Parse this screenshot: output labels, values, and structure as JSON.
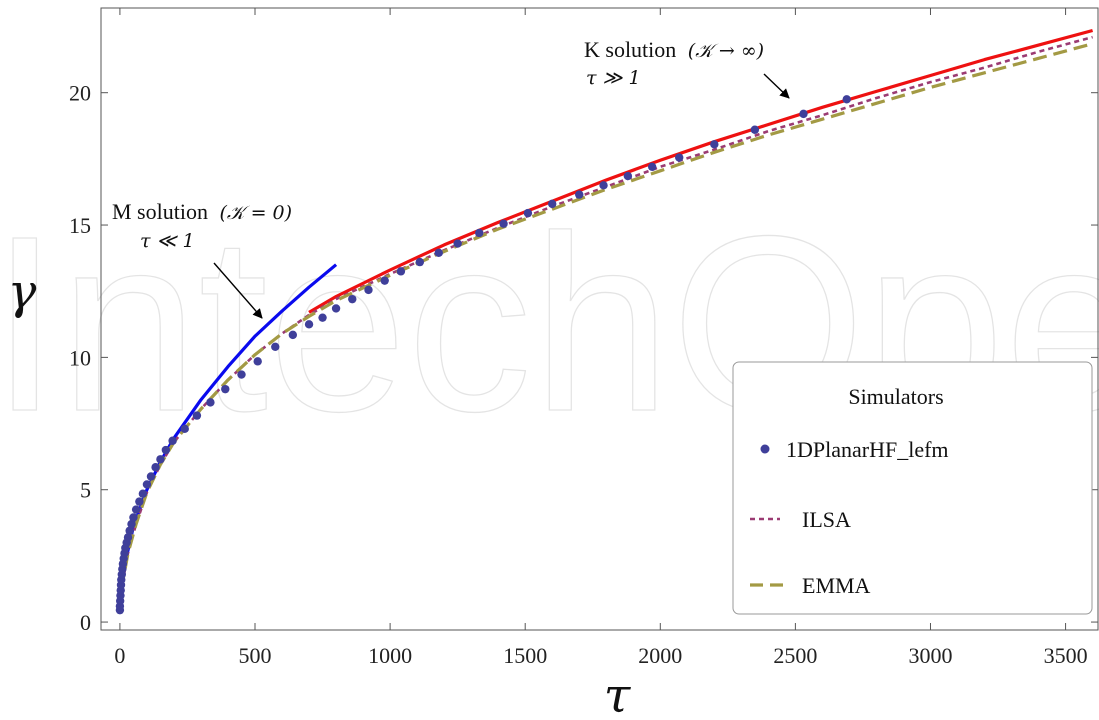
{
  "watermark": "IntechOpen",
  "chart_data": {
    "type": "line",
    "title": "",
    "xlabel": "τ",
    "ylabel": "γ",
    "xlim": [
      -70,
      3620
    ],
    "ylim": [
      -0.3,
      23.2
    ],
    "xticks": [
      0,
      500,
      1000,
      1500,
      2000,
      2500,
      3000,
      3500
    ],
    "yticks": [
      0,
      5,
      10,
      15,
      20
    ],
    "xtick_labels": [
      "0",
      "500",
      "1000",
      "1500",
      "2000",
      "2500",
      "3000",
      "3500"
    ],
    "ytick_labels": [
      "0",
      "5",
      "10",
      "15",
      "20"
    ],
    "grid": false,
    "legend": {
      "title": "Simulators",
      "placement": "bottom-right",
      "entries": [
        {
          "label": "1DPlanarHF_lefm",
          "style": "dots",
          "color": "#3f3f9a"
        },
        {
          "label": "ILSA",
          "style": "short-dash",
          "color": "#9b3b73"
        },
        {
          "label": "EMMA",
          "style": "long-dash",
          "color": "#a39a44"
        }
      ]
    },
    "series": [
      {
        "name": "",
        "id": "M-solution",
        "style": "solid",
        "color": "#0a0aee",
        "points": [
          [
            0,
            0.45
          ],
          [
            10,
            1.58
          ],
          [
            25,
            2.5
          ],
          [
            50,
            3.6
          ],
          [
            100,
            5.0
          ],
          [
            150,
            6.05
          ],
          [
            200,
            6.95
          ],
          [
            300,
            8.4
          ],
          [
            400,
            9.65
          ],
          [
            500,
            10.8
          ],
          [
            600,
            11.75
          ],
          [
            700,
            12.65
          ],
          [
            800,
            13.5
          ]
        ]
      },
      {
        "name": "",
        "id": "K-solution",
        "style": "solid",
        "color": "#ee1111",
        "points": [
          [
            700,
            11.7
          ],
          [
            800,
            12.3
          ],
          [
            1000,
            13.3
          ],
          [
            1200,
            14.25
          ],
          [
            1400,
            15.1
          ],
          [
            1600,
            15.9
          ],
          [
            1800,
            16.7
          ],
          [
            2000,
            17.45
          ],
          [
            2200,
            18.15
          ],
          [
            2400,
            18.8
          ],
          [
            2600,
            19.45
          ],
          [
            2800,
            20.05
          ],
          [
            3000,
            20.65
          ],
          [
            3200,
            21.25
          ],
          [
            3400,
            21.8
          ],
          [
            3600,
            22.35
          ]
        ]
      },
      {
        "name": "1DPlanarHF_lefm",
        "style": "dots",
        "color": "#3f3f9a",
        "points": [
          [
            0,
            0.45
          ],
          [
            0,
            0.6
          ],
          [
            1,
            0.8
          ],
          [
            2,
            1.0
          ],
          [
            3,
            1.2
          ],
          [
            4,
            1.4
          ],
          [
            5,
            1.6
          ],
          [
            7,
            1.8
          ],
          [
            9,
            2.0
          ],
          [
            11,
            2.2
          ],
          [
            14,
            2.4
          ],
          [
            17,
            2.6
          ],
          [
            20,
            2.8
          ],
          [
            25,
            3.0
          ],
          [
            30,
            3.2
          ],
          [
            36,
            3.45
          ],
          [
            43,
            3.7
          ],
          [
            50,
            3.95
          ],
          [
            60,
            4.25
          ],
          [
            72,
            4.55
          ],
          [
            85,
            4.85
          ],
          [
            100,
            5.2
          ],
          [
            115,
            5.5
          ],
          [
            132,
            5.85
          ],
          [
            150,
            6.15
          ],
          [
            170,
            6.5
          ],
          [
            195,
            6.85
          ],
          [
            240,
            7.3
          ],
          [
            285,
            7.8
          ],
          [
            335,
            8.3
          ],
          [
            390,
            8.8
          ],
          [
            450,
            9.35
          ],
          [
            510,
            9.85
          ],
          [
            575,
            10.4
          ],
          [
            640,
            10.85
          ],
          [
            700,
            11.25
          ],
          [
            750,
            11.5
          ],
          [
            800,
            11.85
          ],
          [
            860,
            12.2
          ],
          [
            920,
            12.55
          ],
          [
            980,
            12.9
          ],
          [
            1040,
            13.25
          ],
          [
            1110,
            13.6
          ],
          [
            1180,
            13.95
          ],
          [
            1250,
            14.3
          ],
          [
            1330,
            14.7
          ],
          [
            1420,
            15.05
          ],
          [
            1510,
            15.45
          ],
          [
            1600,
            15.8
          ],
          [
            1700,
            16.15
          ],
          [
            1790,
            16.5
          ],
          [
            1880,
            16.85
          ],
          [
            1970,
            17.2
          ],
          [
            2070,
            17.55
          ],
          [
            2200,
            18.05
          ],
          [
            2350,
            18.6
          ],
          [
            2530,
            19.2
          ],
          [
            2690,
            19.75
          ]
        ]
      },
      {
        "name": "ILSA",
        "style": "short-dash",
        "color": "#9b3b73",
        "points": [
          [
            0,
            0.45
          ],
          [
            10,
            1.5
          ],
          [
            30,
            2.6
          ],
          [
            60,
            3.7
          ],
          [
            100,
            4.9
          ],
          [
            150,
            5.95
          ],
          [
            200,
            6.8
          ],
          [
            300,
            8.05
          ],
          [
            400,
            9.15
          ],
          [
            500,
            10.1
          ],
          [
            600,
            10.9
          ],
          [
            700,
            11.6
          ],
          [
            800,
            12.2
          ],
          [
            1000,
            13.15
          ],
          [
            1200,
            14.05
          ],
          [
            1400,
            14.9
          ],
          [
            1600,
            15.7
          ],
          [
            1800,
            16.45
          ],
          [
            2000,
            17.2
          ],
          [
            2200,
            17.85
          ],
          [
            2400,
            18.55
          ],
          [
            2600,
            19.15
          ],
          [
            2800,
            19.8
          ],
          [
            3000,
            20.4
          ],
          [
            3200,
            20.95
          ],
          [
            3400,
            21.55
          ],
          [
            3600,
            22.1
          ]
        ]
      },
      {
        "name": "EMMA",
        "style": "long-dash",
        "color": "#a39a44",
        "points": [
          [
            0,
            0.45
          ],
          [
            10,
            1.5
          ],
          [
            30,
            2.6
          ],
          [
            60,
            3.7
          ],
          [
            100,
            4.9
          ],
          [
            150,
            5.95
          ],
          [
            200,
            6.8
          ],
          [
            300,
            8.05
          ],
          [
            400,
            9.15
          ],
          [
            500,
            10.1
          ],
          [
            600,
            10.9
          ],
          [
            700,
            11.55
          ],
          [
            800,
            12.15
          ],
          [
            1000,
            13.1
          ],
          [
            1200,
            14.0
          ],
          [
            1400,
            14.85
          ],
          [
            1600,
            15.6
          ],
          [
            1800,
            16.35
          ],
          [
            2000,
            17.05
          ],
          [
            2200,
            17.75
          ],
          [
            2400,
            18.4
          ],
          [
            2600,
            19.0
          ],
          [
            2800,
            19.6
          ],
          [
            3000,
            20.2
          ],
          [
            3200,
            20.75
          ],
          [
            3400,
            21.3
          ],
          [
            3600,
            21.85
          ]
        ]
      }
    ],
    "annotations": [
      {
        "id": "k",
        "line1_text": "K solution",
        "line1_math": "(𝒦 → ∞)",
        "line2_math": "τ ≫ 1",
        "arrow_to": [
          2530,
          19.2
        ]
      },
      {
        "id": "m",
        "line1_text": "M solution",
        "line1_math": "(𝒦 = 0)",
        "line2_math": "τ ≪ 1",
        "arrow_to": [
          530,
          11.1
        ]
      }
    ]
  }
}
